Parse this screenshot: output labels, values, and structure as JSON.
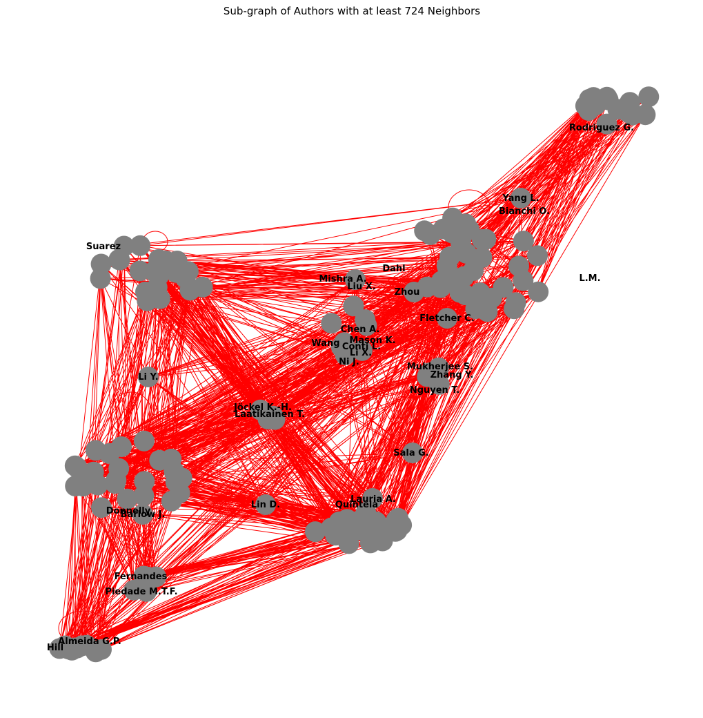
{
  "title": "Sub-graph of Authors with at least 724 Neighbors",
  "colors": {
    "edge": "#ff0000",
    "node": "#808080",
    "label": "#000000",
    "background": "#ffffff"
  },
  "labels": {
    "yang": "Yang L.",
    "bianchi": "Bianchi O.",
    "rodriguez": "Rodriguez G.",
    "mishra": "Mishra A.",
    "liux": "Liu X.",
    "zhou": "Zhou",
    "fletcher": "Fletcher C.",
    "dahl": "Dahl",
    "chena": "Chen A.",
    "mason": "Mason K.",
    "wang": "Wang",
    "conti": "Conti L.",
    "lix": "Li X.",
    "ni": "Ni J.",
    "mukherjee": "Mukherjee S.",
    "zhang": "Zhang Y.",
    "nguyen": "Nguyen T.",
    "liy": "Li Y.",
    "jockel": "Jöckel K.-H.",
    "laatikainen": "Laatikainen T.",
    "sala": "Sala G.",
    "lauria": "Lauria A.",
    "quintela": "Quintela",
    "lin": "Lin D.",
    "barlow": "Barlow J.",
    "donnelly": "Donnelly",
    "piedade": "Piedade M.T.F.",
    "fernandes": "Fernandes",
    "hill": "Hill",
    "almeida": "Almeida G.P.",
    "suarez": "Suarez",
    "lm": "L.M."
  }
}
